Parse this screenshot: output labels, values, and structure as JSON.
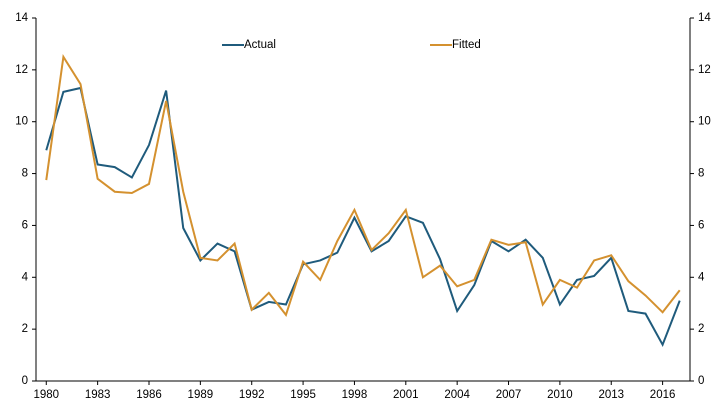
{
  "chart_data": {
    "type": "line",
    "x": [
      1980,
      1981,
      1982,
      1983,
      1984,
      1985,
      1986,
      1987,
      1988,
      1989,
      1990,
      1991,
      1992,
      1993,
      1994,
      1995,
      1996,
      1997,
      1998,
      1999,
      2000,
      2001,
      2002,
      2003,
      2004,
      2005,
      2006,
      2007,
      2008,
      2009,
      2010,
      2011,
      2012,
      2013,
      2014,
      2015,
      2016,
      2017
    ],
    "series": [
      {
        "name": "Actual",
        "color": "#1f5b7c",
        "values": [
          8.9,
          11.15,
          11.3,
          8.35,
          8.25,
          7.85,
          9.1,
          11.2,
          5.9,
          4.65,
          5.3,
          5.0,
          2.75,
          3.05,
          2.95,
          4.5,
          4.65,
          4.95,
          6.3,
          5.0,
          5.4,
          6.35,
          6.1,
          4.7,
          2.7,
          3.7,
          5.4,
          5.0,
          5.45,
          4.75,
          2.95,
          3.9,
          4.05,
          4.75,
          2.7,
          2.6,
          1.4,
          3.1
        ]
      },
      {
        "name": "Fitted",
        "color": "#d4912f",
        "values": [
          7.75,
          12.5,
          11.45,
          7.8,
          7.3,
          7.25,
          7.6,
          10.8,
          7.3,
          4.75,
          4.65,
          5.3,
          2.75,
          3.4,
          2.55,
          4.6,
          3.9,
          5.4,
          6.6,
          5.05,
          5.7,
          6.6,
          4.0,
          4.45,
          3.65,
          3.9,
          5.45,
          5.25,
          5.35,
          2.95,
          3.9,
          3.6,
          4.65,
          4.85,
          3.85,
          3.3,
          2.65,
          3.5
        ]
      }
    ],
    "xlim": [
      1979.4,
      2017.6
    ],
    "xticks": [
      1980,
      1983,
      1986,
      1989,
      1992,
      1995,
      1998,
      2001,
      2004,
      2007,
      2010,
      2013,
      2016
    ],
    "ylim": [
      0,
      14
    ],
    "yticks": [
      0,
      2,
      4,
      6,
      8,
      10,
      12,
      14
    ],
    "y2lim": [
      0,
      14
    ],
    "y2ticks": [
      0,
      2,
      4,
      6,
      8,
      10,
      12,
      14
    ],
    "grid": false
  }
}
